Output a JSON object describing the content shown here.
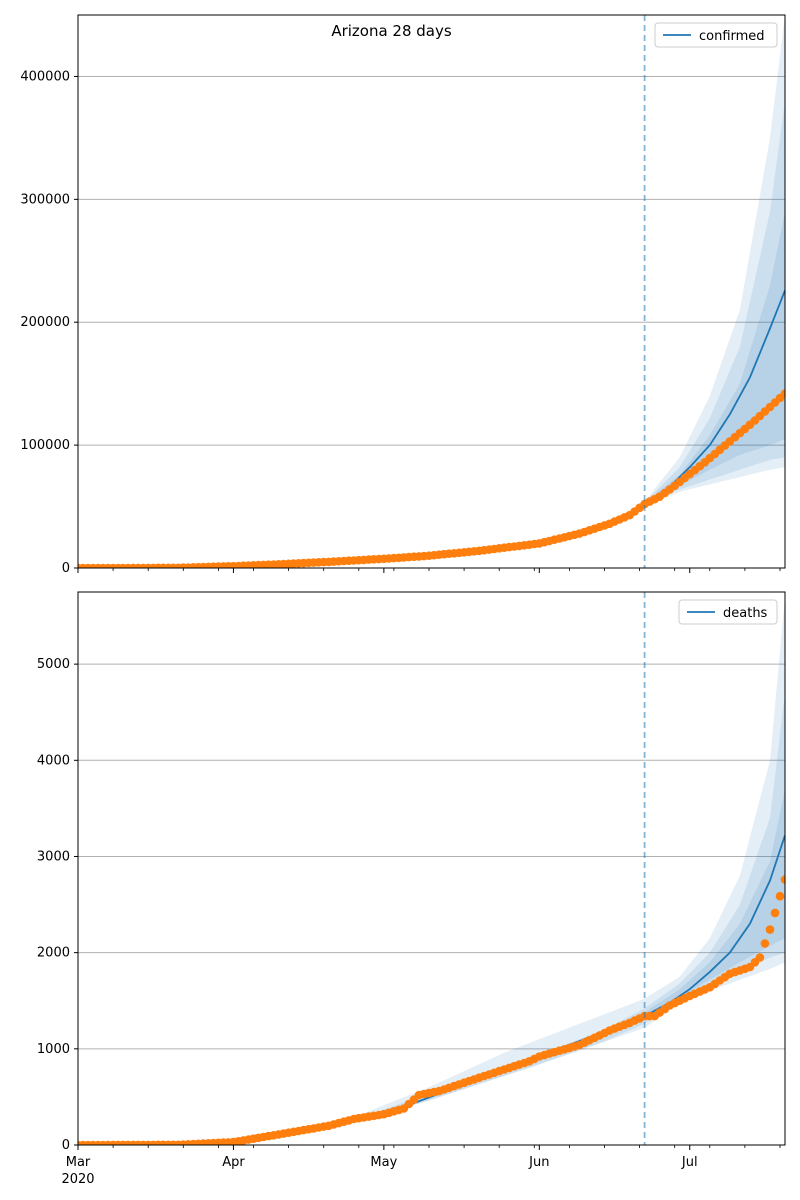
{
  "title": "Arizona 28 days",
  "colors": {
    "model": "#1f77b4",
    "observed": "#ff7f0e",
    "band": "#1f77b4",
    "grid": "#b0b0b0",
    "forecast_line": "#1f77b4"
  },
  "x_axis": {
    "ticks": [
      {
        "day": 0,
        "label": "Mar"
      },
      {
        "day": 31,
        "label": "Apr"
      },
      {
        "day": 61,
        "label": "May"
      },
      {
        "day": 92,
        "label": "Jun"
      },
      {
        "day": 122,
        "label": "Jul"
      }
    ],
    "year_label": "2020",
    "xlim": [
      0,
      141
    ],
    "forecast_start_day": 113
  },
  "chart_data": [
    {
      "type": "line",
      "name": "confirmed",
      "legend": "confirmed",
      "ylim": [
        0,
        450000
      ],
      "yticks": [
        0,
        100000,
        200000,
        300000,
        400000
      ],
      "observed": [
        [
          0,
          1
        ],
        [
          10,
          30
        ],
        [
          20,
          200
        ],
        [
          31,
          1500
        ],
        [
          40,
          3000
        ],
        [
          50,
          5000
        ],
        [
          61,
          7500
        ],
        [
          70,
          10000
        ],
        [
          80,
          14000
        ],
        [
          92,
          20000
        ],
        [
          100,
          28000
        ],
        [
          106,
          36000
        ],
        [
          110,
          43000
        ],
        [
          113,
          52000
        ],
        [
          116,
          58000
        ],
        [
          120,
          70000
        ],
        [
          125,
          86000
        ],
        [
          130,
          103000
        ],
        [
          135,
          120000
        ],
        [
          141,
          142000
        ]
      ],
      "model": [
        [
          0,
          1
        ],
        [
          31,
          1500
        ],
        [
          61,
          7500
        ],
        [
          92,
          20000
        ],
        [
          105,
          33000
        ],
        [
          113,
          52000
        ],
        [
          118,
          66000
        ],
        [
          122,
          82000
        ],
        [
          126,
          100000
        ],
        [
          130,
          125000
        ],
        [
          134,
          155000
        ],
        [
          138,
          195000
        ],
        [
          141,
          226000
        ]
      ],
      "bands": [
        {
          "lower": [
            [
              113,
              50000
            ],
            [
              120,
              62000
            ],
            [
              126,
              68000
            ],
            [
              132,
              74000
            ],
            [
              138,
              80000
            ],
            [
              141,
              82000
            ]
          ],
          "upper": [
            [
              113,
              54000
            ],
            [
              120,
              90000
            ],
            [
              126,
              140000
            ],
            [
              132,
              210000
            ],
            [
              138,
              350000
            ],
            [
              141,
              450000
            ]
          ]
        },
        {
          "lower": [
            [
              113,
              51000
            ],
            [
              120,
              64000
            ],
            [
              126,
              72000
            ],
            [
              132,
              80000
            ],
            [
              138,
              88000
            ],
            [
              141,
              90000
            ]
          ],
          "upper": [
            [
              113,
              53500
            ],
            [
              120,
              82000
            ],
            [
              126,
              122000
            ],
            [
              132,
              180000
            ],
            [
              138,
              290000
            ],
            [
              141,
              380000
            ]
          ]
        },
        {
          "lower": [
            [
              113,
              51500
            ],
            [
              120,
              67000
            ],
            [
              126,
              80000
            ],
            [
              132,
              92000
            ],
            [
              138,
              100000
            ],
            [
              141,
              105000
            ]
          ],
          "upper": [
            [
              113,
              53000
            ],
            [
              120,
              76000
            ],
            [
              126,
              108000
            ],
            [
              132,
              150000
            ],
            [
              138,
              230000
            ],
            [
              141,
              290000
            ]
          ]
        }
      ]
    },
    {
      "type": "line",
      "name": "deaths",
      "legend": "deaths",
      "ylim": [
        0,
        5750
      ],
      "yticks": [
        0,
        1000,
        2000,
        3000,
        4000,
        5000
      ],
      "observed": [
        [
          0,
          0
        ],
        [
          20,
          2
        ],
        [
          31,
          30
        ],
        [
          40,
          110
        ],
        [
          50,
          200
        ],
        [
          55,
          270
        ],
        [
          61,
          320
        ],
        [
          65,
          380
        ],
        [
          68,
          520
        ],
        [
          72,
          560
        ],
        [
          80,
          700
        ],
        [
          90,
          870
        ],
        [
          92,
          920
        ],
        [
          100,
          1040
        ],
        [
          106,
          1190
        ],
        [
          110,
          1270
        ],
        [
          113,
          1340
        ],
        [
          115,
          1340
        ],
        [
          118,
          1450
        ],
        [
          122,
          1550
        ],
        [
          126,
          1640
        ],
        [
          130,
          1780
        ],
        [
          134,
          1850
        ],
        [
          136,
          1950
        ],
        [
          138,
          2240
        ],
        [
          141,
          2760
        ]
      ],
      "model": [
        [
          0,
          0
        ],
        [
          31,
          30
        ],
        [
          61,
          320
        ],
        [
          92,
          920
        ],
        [
          113,
          1340
        ],
        [
          118,
          1480
        ],
        [
          122,
          1620
        ],
        [
          126,
          1800
        ],
        [
          130,
          2000
        ],
        [
          134,
          2300
        ],
        [
          138,
          2750
        ],
        [
          141,
          3220
        ]
      ],
      "bands": [
        {
          "lower": [
            [
              55,
              240
            ],
            [
              70,
              460
            ],
            [
              85,
              720
            ],
            [
              100,
              980
            ],
            [
              113,
              1220
            ],
            [
              120,
              1470
            ],
            [
              126,
              1600
            ],
            [
              132,
              1720
            ],
            [
              138,
              1830
            ],
            [
              141,
              1900
            ]
          ],
          "upper": [
            [
              55,
              290
            ],
            [
              70,
              600
            ],
            [
              85,
              960
            ],
            [
              100,
              1260
            ],
            [
              113,
              1520
            ],
            [
              120,
              1750
            ],
            [
              126,
              2150
            ],
            [
              132,
              2800
            ],
            [
              138,
              4000
            ],
            [
              141,
              5700
            ]
          ]
        },
        {
          "lower": [
            [
              60,
              300
            ],
            [
              75,
              550
            ],
            [
              90,
              800
            ],
            [
              105,
              1080
            ],
            [
              113,
              1260
            ],
            [
              120,
              1500
            ],
            [
              126,
              1650
            ],
            [
              132,
              1800
            ],
            [
              138,
              1950
            ],
            [
              141,
              2000
            ]
          ],
          "upper": [
            [
              60,
              350
            ],
            [
              75,
              630
            ],
            [
              90,
              900
            ],
            [
              105,
              1200
            ],
            [
              113,
              1420
            ],
            [
              120,
              1680
            ],
            [
              126,
              2000
            ],
            [
              132,
              2500
            ],
            [
              138,
              3400
            ],
            [
              141,
              4700
            ]
          ]
        },
        {
          "lower": [
            [
              113,
              1300
            ],
            [
              120,
              1530
            ],
            [
              126,
              1720
            ],
            [
              132,
              1900
            ],
            [
              138,
              2070
            ],
            [
              141,
              2150
            ]
          ],
          "upper": [
            [
              113,
              1380
            ],
            [
              120,
              1620
            ],
            [
              126,
              1900
            ],
            [
              132,
              2300
            ],
            [
              138,
              2950
            ],
            [
              141,
              3700
            ]
          ]
        }
      ]
    }
  ]
}
